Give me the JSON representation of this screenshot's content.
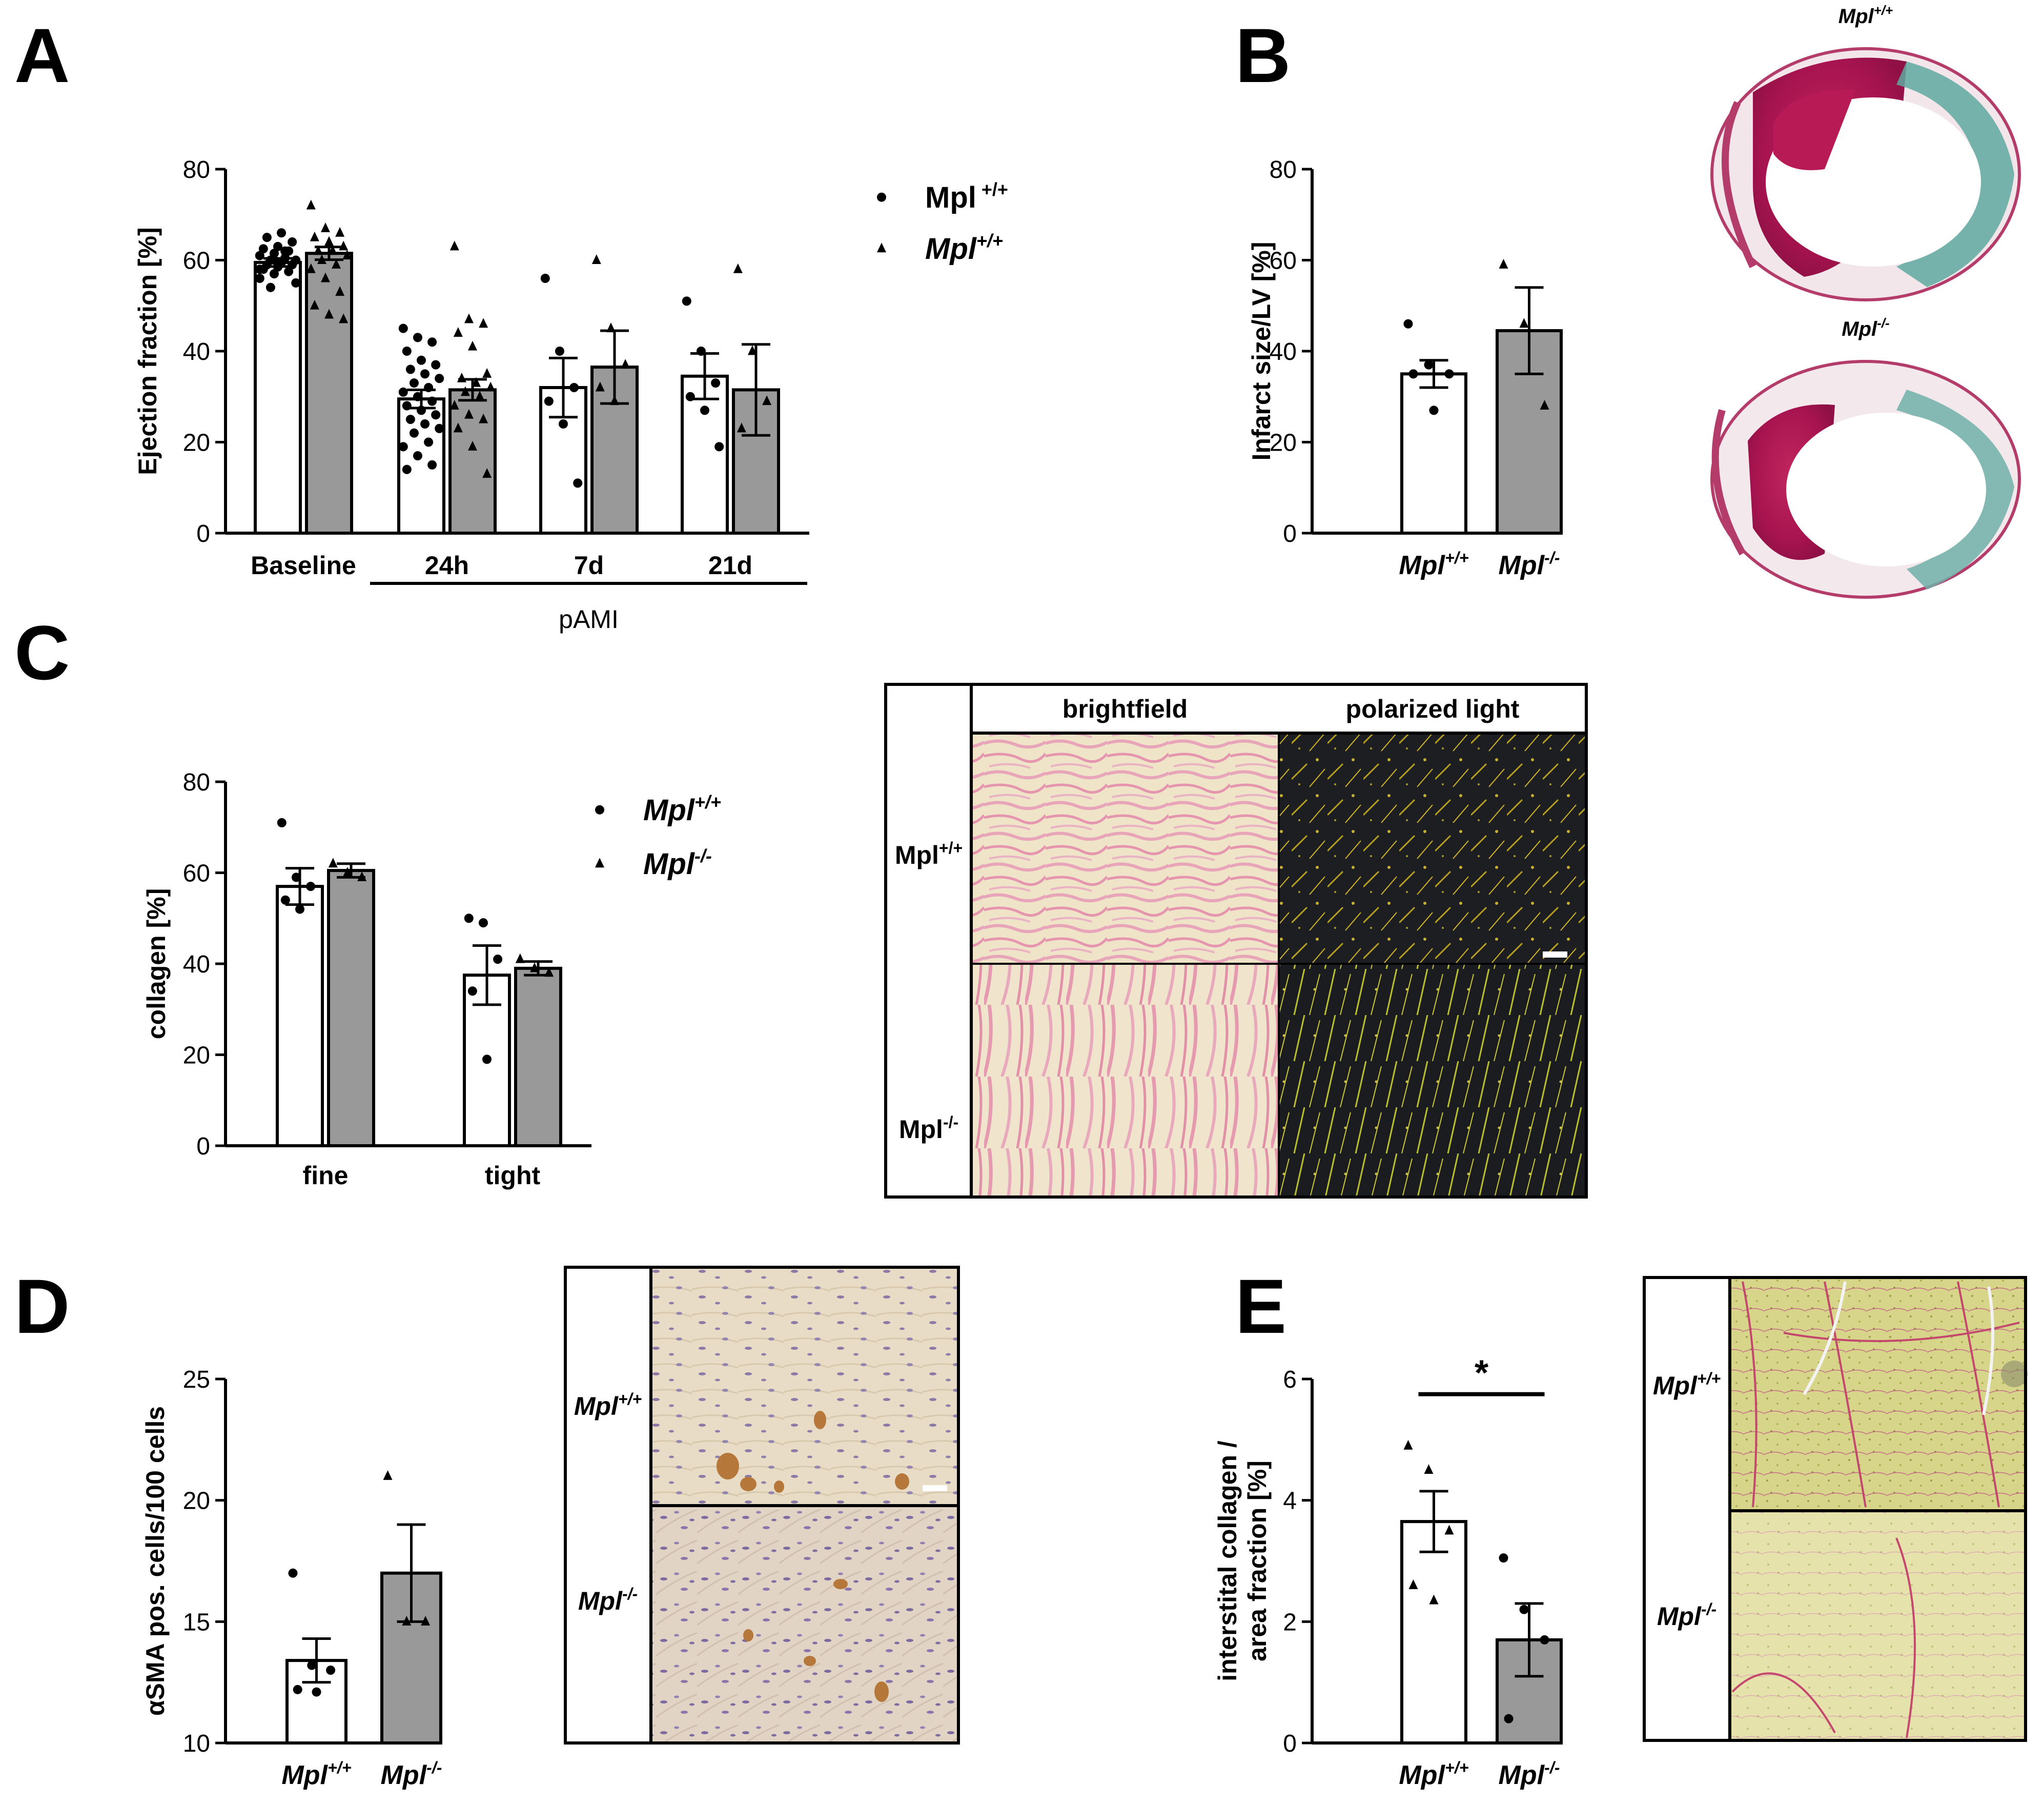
{
  "panels": {
    "A": {
      "letter": "A"
    },
    "B": {
      "letter": "B"
    },
    "C": {
      "letter": "C"
    },
    "D": {
      "letter": "D"
    },
    "E": {
      "letter": "E"
    }
  },
  "legend_A": [
    {
      "base": "Mpl",
      "sup": " +/+",
      "italic": false,
      "marker": "circle"
    },
    {
      "base": "Mpl",
      "sup": "+/+",
      "italic": true,
      "marker": "triangle"
    }
  ],
  "legend_C": [
    {
      "base": "Mpl",
      "sup": "+/+",
      "italic": true,
      "marker": "circle"
    },
    {
      "base": "Mpl",
      "sup": "-/-",
      "italic": true,
      "marker": "triangle"
    }
  ],
  "micrographs": {
    "B": {
      "top_label_base": "Mpl",
      "top_label_sup": "+/+",
      "bottom_label_base": "Mpl",
      "bottom_label_sup": "-/-"
    },
    "C": {
      "col1": "brightfield",
      "col2": "polarized light",
      "row1_base": "Mpl",
      "row1_sup": "+/+",
      "row2_base": "Mpl",
      "row2_sup": "-/-"
    },
    "D": {
      "row1_base": "Mpl",
      "row1_sup": "+/+",
      "row2_base": "Mpl",
      "row2_sup": "-/-"
    },
    "E": {
      "row1_base": "Mpl",
      "row1_sup": "+/+",
      "row2_base": "Mpl",
      "row2_sup": "-/-"
    }
  },
  "colors": {
    "white_bar": "#ffffff",
    "grey_bar": "#999999",
    "outline": "#000000"
  },
  "chart_data": [
    {
      "id": "A",
      "type": "bar",
      "ylabel": "Ejection fraction [%]",
      "ylim": [
        0,
        80
      ],
      "yticks": [
        0,
        20,
        40,
        60,
        80
      ],
      "categories": [
        "Baseline",
        "24h",
        "7d",
        "21d"
      ],
      "group_label": "pAMI",
      "group_spans": [
        "24h",
        "21d"
      ],
      "series": [
        {
          "marker": "circle",
          "fill": "white",
          "means": [
            59.5,
            29.5,
            32.0,
            34.5
          ],
          "sem": [
            0.9,
            2.0,
            6.5,
            5.0
          ],
          "points": [
            [
              56,
              57,
              57.5,
              58,
              58.5,
              59,
              59,
              59.5,
              60,
              60,
              60.5,
              61,
              61.5,
              62,
              62.5,
              63,
              64,
              65,
              66,
              55,
              54,
              62,
              58,
              60
            ],
            [
              45,
              43,
              42,
              40,
              38,
              37,
              36,
              35,
              34,
              33,
              32,
              31,
              30,
              29,
              28,
              27,
              26,
              25,
              24,
              23,
              22,
              20,
              19,
              17,
              15,
              14
            ],
            [
              56,
              40,
              32,
              29,
              24,
              11
            ],
            [
              51,
              40,
              33,
              30,
              27,
              19
            ]
          ]
        },
        {
          "marker": "triangle",
          "fill": "grey",
          "means": [
            61.5,
            31.5,
            36.5,
            31.5
          ],
          "sem": [
            1.4,
            2.3,
            8.0,
            10.0
          ],
          "points": [
            [
              72,
              67,
              66,
              65,
              64,
              63,
              62,
              62,
              61,
              60,
              59,
              58,
              56,
              53,
              50,
              48,
              47
            ],
            [
              63,
              47,
              46,
              44,
              41,
              35,
              34,
              33,
              32,
              31,
              30,
              28,
              26,
              25,
              23,
              19,
              13
            ],
            [
              60,
              45,
              37,
              32,
              29
            ],
            [
              58,
              40,
              29,
              23
            ]
          ]
        }
      ]
    },
    {
      "id": "B",
      "type": "bar",
      "ylabel": "Infarct size/LV [%]",
      "ylim": [
        0,
        80
      ],
      "yticks": [
        0,
        20,
        40,
        60,
        80
      ],
      "categories": [
        {
          "base": "Mpl",
          "sup": "+/+"
        },
        {
          "base": "Mpl",
          "sup": "-/-"
        }
      ],
      "series": [
        {
          "marker": "circle",
          "fill": "white",
          "mean": 35.0,
          "sem": 3.0,
          "points": [
            46,
            37,
            35,
            35,
            27
          ]
        },
        {
          "marker": "triangle",
          "fill": "grey",
          "mean": 44.5,
          "sem": 9.5,
          "points": [
            59,
            46,
            28
          ]
        }
      ]
    },
    {
      "id": "C",
      "type": "bar",
      "ylabel": "collagen [%]",
      "ylim": [
        0,
        80
      ],
      "yticks": [
        0,
        20,
        40,
        60,
        80
      ],
      "categories": [
        "fine",
        "tight"
      ],
      "series": [
        {
          "marker": "circle",
          "fill": "white",
          "means": [
            57.0,
            37.5
          ],
          "sem": [
            4.0,
            6.5
          ],
          "points": [
            [
              71,
              59,
              57,
              54,
              52
            ],
            [
              50,
              49,
              41,
              34,
              19
            ]
          ]
        },
        {
          "marker": "triangle",
          "fill": "grey",
          "means": [
            60.5,
            39.0
          ],
          "sem": [
            1.5,
            1.5
          ],
          "points": [
            [
              62,
              60,
              59
            ],
            [
              41,
              39,
              38
            ]
          ]
        }
      ]
    },
    {
      "id": "D",
      "type": "bar",
      "ylabel": "αSMA pos. cells/100 cells",
      "ylim": [
        10,
        25
      ],
      "yticks": [
        10,
        15,
        20,
        25
      ],
      "categories": [
        {
          "base": "Mpl",
          "sup": "+/+"
        },
        {
          "base": "Mpl",
          "sup": "-/-"
        }
      ],
      "series": [
        {
          "marker": "circle",
          "fill": "white",
          "mean": 13.4,
          "sem": 0.9,
          "points": [
            17,
            13.2,
            13.0,
            12.2,
            12.1
          ]
        },
        {
          "marker": "triangle",
          "fill": "grey",
          "mean": 17.0,
          "sem": 2.0,
          "points": [
            21,
            15,
            15
          ]
        }
      ]
    },
    {
      "id": "E",
      "type": "bar",
      "ylabel_lines": [
        "interstital collagen /",
        "area fraction [%]"
      ],
      "ylim": [
        0,
        6
      ],
      "yticks": [
        0,
        2,
        4,
        6
      ],
      "categories": [
        {
          "base": "Mpl",
          "sup": "+/+"
        },
        {
          "base": "Mpl",
          "sup": "-/-"
        }
      ],
      "significance": "*",
      "series": [
        {
          "marker": "triangle",
          "fill": "white",
          "mean": 3.65,
          "sem": 0.5,
          "points": [
            4.9,
            4.5,
            3.5,
            2.6,
            2.35
          ]
        },
        {
          "marker": "circle",
          "fill": "grey",
          "mean": 1.7,
          "sem": 0.6,
          "points": [
            3.05,
            2.2,
            1.7,
            0.4
          ]
        }
      ]
    }
  ]
}
